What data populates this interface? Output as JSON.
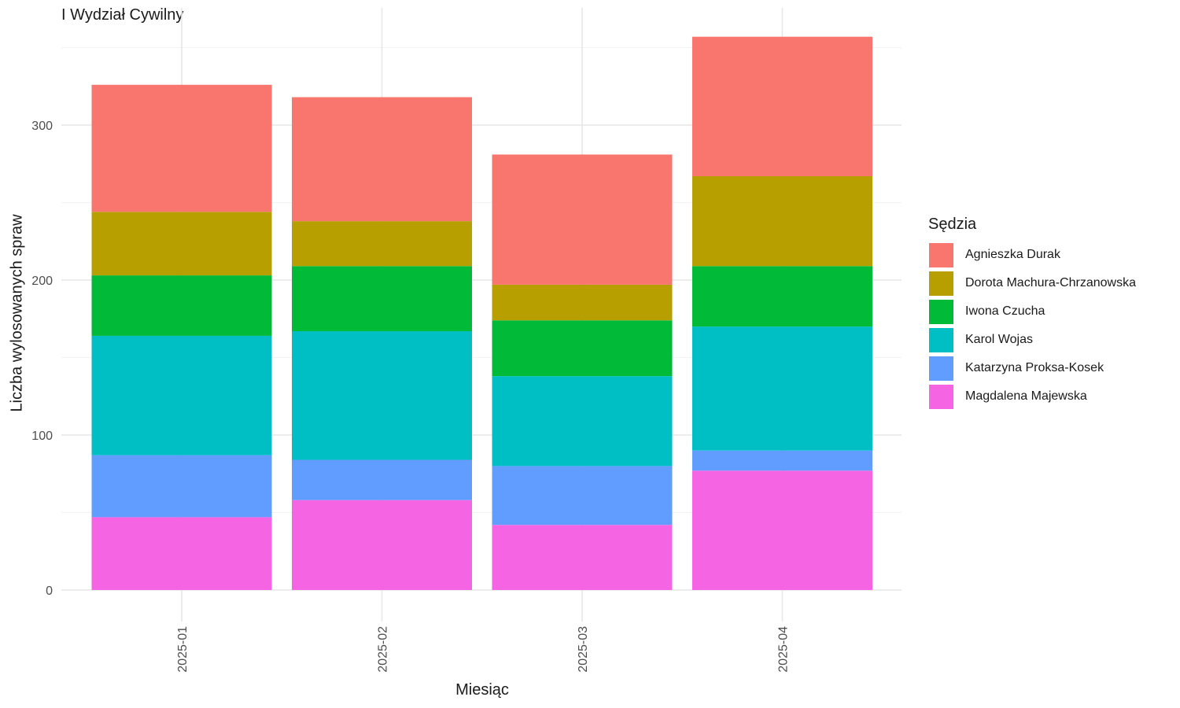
{
  "chart_data": {
    "type": "bar",
    "stacked": true,
    "title": "I Wydział Cywilny",
    "xlabel": "Miesiąc",
    "ylabel": "Liczba wylosowanych spraw",
    "ylim": [
      0,
      375
    ],
    "yticks": [
      0,
      100,
      200,
      300
    ],
    "grid": true,
    "legend_title": "Sędzia",
    "legend_position": "right",
    "categories": [
      "2025-01",
      "2025-02",
      "2025-03",
      "2025-04"
    ],
    "series": [
      {
        "name": "Magdalena Majewska",
        "color": "#F564E3",
        "values": [
          47,
          58,
          42,
          77
        ]
      },
      {
        "name": "Katarzyna Proksa-Kosek",
        "color": "#619CFF",
        "values": [
          40,
          26,
          38,
          13
        ]
      },
      {
        "name": "Karol Wojas",
        "color": "#00BFC4",
        "values": [
          77,
          83,
          58,
          80
        ]
      },
      {
        "name": "Iwona Czucha",
        "color": "#00BA38",
        "values": [
          39,
          42,
          36,
          39
        ]
      },
      {
        "name": "Dorota Machura-Chrzanowska",
        "color": "#B79F00",
        "values": [
          41,
          29,
          23,
          58
        ]
      },
      {
        "name": "Agnieszka Durak",
        "color": "#F8766D",
        "values": [
          82,
          80,
          84,
          90
        ]
      }
    ],
    "legend_order": [
      "Agnieszka Durak",
      "Dorota Machura-Chrzanowska",
      "Iwona Czucha",
      "Karol Wojas",
      "Katarzyna Proksa-Kosek",
      "Magdalena Majewska"
    ]
  }
}
